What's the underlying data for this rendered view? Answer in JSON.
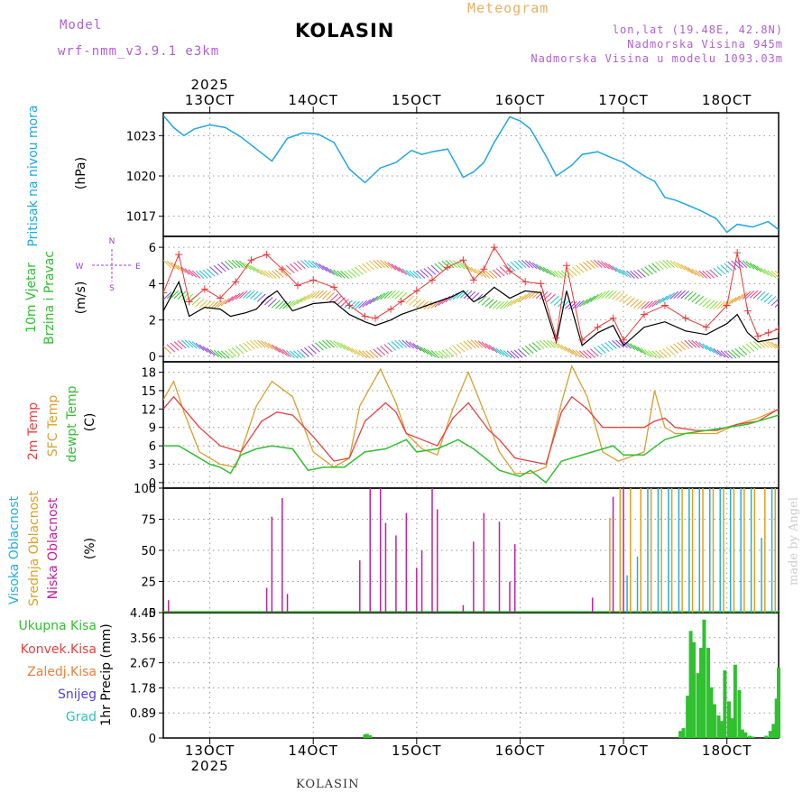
{
  "header": {
    "model_label": "Model",
    "model_version": "wrf-nmm_v3.9.1 e3km",
    "station": "KOLASIN",
    "meteogram": "Meteogram",
    "lonlat": "lon,lat (19.48E, 42.8N)",
    "elevation": "Nadmorska Visina 945m",
    "model_elevation": "Nadmorska Visina u modelu 1093.03m"
  },
  "footer": {
    "station": "KOLASIN",
    "credit": "made by Angel"
  },
  "colors": {
    "pressure": "#20a8e0",
    "wind_speed": "#000000",
    "wind_gust": "#e83838",
    "temp2m": "#e84040",
    "sfc_temp": "#d8a030",
    "dewpt": "#30c030",
    "cloud_high": "#20b0e0",
    "cloud_mid": "#e0a020",
    "cloud_low": "#c020a0",
    "precip": "#30c030"
  },
  "chart_data": [
    {
      "type": "line",
      "panel": "pressure",
      "title": "Pritisak na nivou mora",
      "ylabel": "(hPa)",
      "yticks": [
        1017,
        1020,
        1023
      ],
      "ylim": [
        1015.5,
        1024.7
      ],
      "x_day_range": [
        12.55,
        18.5
      ],
      "x_ticks": [
        "13OCT",
        "14OCT",
        "15OCT",
        "16OCT",
        "17OCT",
        "18OCT"
      ],
      "year": "2025",
      "series": [
        {
          "name": "MSLP",
          "x": [
            12.55,
            12.65,
            12.75,
            12.85,
            13.0,
            13.15,
            13.3,
            13.45,
            13.6,
            13.75,
            13.9,
            14.05,
            14.2,
            14.35,
            14.5,
            14.65,
            14.8,
            14.95,
            15.05,
            15.15,
            15.3,
            15.45,
            15.55,
            15.65,
            15.75,
            15.9,
            16.0,
            16.1,
            16.25,
            16.35,
            16.5,
            16.6,
            16.75,
            16.9,
            17.0,
            17.2,
            17.3,
            17.4,
            17.5,
            17.6,
            17.75,
            17.9,
            18.0,
            18.1,
            18.25,
            18.4,
            18.5
          ],
          "values": [
            1024.5,
            1023.6,
            1023.0,
            1023.5,
            1023.8,
            1023.6,
            1022.9,
            1022.0,
            1021.1,
            1022.8,
            1023.2,
            1023.1,
            1022.5,
            1020.5,
            1019.5,
            1020.6,
            1021.0,
            1021.9,
            1021.6,
            1021.8,
            1022.0,
            1019.9,
            1020.3,
            1021.0,
            1022.5,
            1024.4,
            1024.1,
            1023.5,
            1021.5,
            1020.0,
            1020.8,
            1021.6,
            1021.8,
            1021.3,
            1021.0,
            1020.0,
            1019.6,
            1018.4,
            1018.2,
            1017.9,
            1017.4,
            1016.8,
            1015.8,
            1016.4,
            1016.2,
            1016.6,
            1016.0
          ]
        }
      ]
    },
    {
      "type": "line",
      "panel": "wind",
      "title": "10m Vjetar Brzina i Pravac",
      "ylabel": "(m/s)",
      "yticks": [
        0,
        2,
        4,
        6
      ],
      "ylim": [
        -0.3,
        6.6
      ],
      "compass_labels": [
        "N",
        "S",
        "W",
        "E"
      ],
      "series": [
        {
          "name": "brzina",
          "x": [
            12.55,
            12.7,
            12.8,
            12.95,
            13.1,
            13.2,
            13.35,
            13.45,
            13.55,
            13.65,
            13.8,
            14.0,
            14.2,
            14.35,
            14.5,
            14.6,
            14.75,
            14.85,
            15.0,
            15.15,
            15.25,
            15.35,
            15.45,
            15.55,
            15.65,
            15.75,
            15.9,
            16.05,
            16.2,
            16.35,
            16.45,
            16.6,
            16.75,
            16.9,
            17.0,
            17.2,
            17.4,
            17.6,
            17.8,
            18.0,
            18.1,
            18.2,
            18.3,
            18.5
          ],
          "values": [
            2.5,
            4.1,
            2.2,
            2.7,
            2.6,
            2.2,
            2.4,
            2.6,
            3.2,
            3.6,
            2.5,
            2.9,
            3.0,
            2.3,
            1.9,
            1.7,
            2.0,
            2.3,
            2.6,
            2.9,
            3.1,
            3.3,
            3.6,
            3.0,
            3.3,
            3.8,
            3.2,
            3.6,
            3.5,
            0.8,
            3.6,
            0.6,
            1.3,
            1.7,
            0.6,
            1.6,
            1.9,
            1.4,
            1.2,
            1.8,
            2.3,
            1.3,
            0.8,
            1.0
          ]
        },
        {
          "name": "udari",
          "x": [
            12.55,
            12.7,
            12.8,
            12.95,
            13.1,
            13.25,
            13.4,
            13.55,
            13.7,
            13.85,
            14.0,
            14.2,
            14.35,
            14.5,
            14.6,
            14.75,
            14.85,
            15.0,
            15.15,
            15.3,
            15.45,
            15.55,
            15.65,
            15.75,
            15.9,
            16.05,
            16.2,
            16.35,
            16.45,
            16.6,
            16.75,
            16.9,
            17.0,
            17.2,
            17.4,
            17.6,
            17.8,
            18.0,
            18.1,
            18.2,
            18.3,
            18.4,
            18.5
          ],
          "values": [
            3.5,
            5.6,
            3.0,
            3.7,
            3.2,
            4.1,
            5.3,
            5.6,
            4.8,
            3.9,
            4.2,
            3.8,
            2.8,
            2.2,
            2.1,
            2.6,
            3.0,
            3.6,
            4.2,
            4.9,
            5.3,
            4.2,
            4.8,
            6.0,
            4.7,
            4.1,
            4.0,
            1.0,
            5.0,
            0.9,
            1.6,
            2.1,
            0.9,
            2.3,
            2.8,
            2.1,
            1.6,
            2.8,
            5.7,
            2.5,
            1.1,
            1.3,
            1.5
          ]
        }
      ]
    },
    {
      "type": "line",
      "panel": "temperature",
      "title": "2m Temp / SFC Temp / dewpt Temp",
      "ylabel": "(C)",
      "yticks": [
        0,
        3,
        6,
        9,
        12,
        15,
        18
      ],
      "ylim": [
        -0.9,
        19.7
      ],
      "series": [
        {
          "name": "2m Temp",
          "x": [
            12.55,
            12.65,
            12.75,
            12.9,
            13.1,
            13.3,
            13.5,
            13.65,
            13.8,
            14.0,
            14.2,
            14.35,
            14.5,
            14.7,
            14.8,
            14.9,
            15.05,
            15.2,
            15.35,
            15.5,
            15.7,
            15.8,
            15.95,
            16.1,
            16.25,
            16.4,
            16.5,
            16.65,
            16.8,
            17.0,
            17.2,
            17.3,
            17.4,
            17.5,
            17.7,
            17.9,
            18.1,
            18.3,
            18.5
          ],
          "values": [
            12.0,
            14.0,
            12.0,
            9.0,
            6.0,
            5.0,
            10.0,
            11.5,
            11.0,
            7.5,
            3.5,
            4.0,
            10.0,
            13.0,
            11.5,
            8.0,
            7.0,
            6.0,
            10.5,
            13.0,
            8.5,
            7.0,
            4.0,
            3.5,
            3.0,
            11.5,
            14.0,
            12.0,
            9.0,
            9.0,
            9.0,
            10.0,
            10.5,
            9.0,
            8.5,
            8.5,
            9.5,
            10.0,
            12.0
          ]
        },
        {
          "name": "SFC Temp",
          "x": [
            12.55,
            12.65,
            12.75,
            12.9,
            13.1,
            13.25,
            13.45,
            13.6,
            13.8,
            14.0,
            14.2,
            14.35,
            14.45,
            14.65,
            14.8,
            14.9,
            15.05,
            15.2,
            15.35,
            15.5,
            15.7,
            15.8,
            15.95,
            16.1,
            16.25,
            16.4,
            16.5,
            16.65,
            16.8,
            16.95,
            17.2,
            17.3,
            17.4,
            17.5,
            17.7,
            17.9,
            18.1,
            18.3,
            18.5
          ],
          "values": [
            13.5,
            16.5,
            11.5,
            5.0,
            3.0,
            2.5,
            12.5,
            16.5,
            14.0,
            5.0,
            2.5,
            4.0,
            12.5,
            18.5,
            13.0,
            8.0,
            5.5,
            4.5,
            12.0,
            18.0,
            9.5,
            5.0,
            1.5,
            1.5,
            2.5,
            13.0,
            19.0,
            14.0,
            5.0,
            3.5,
            5.0,
            15.0,
            9.0,
            8.0,
            8.0,
            8.0,
            9.5,
            10.5,
            12.0
          ]
        },
        {
          "name": "dewpt Temp",
          "x": [
            12.55,
            12.7,
            12.85,
            13.0,
            13.1,
            13.2,
            13.3,
            13.45,
            13.6,
            13.8,
            13.95,
            14.1,
            14.3,
            14.5,
            14.7,
            14.9,
            15.0,
            15.2,
            15.4,
            15.55,
            15.7,
            15.8,
            16.0,
            16.1,
            16.25,
            16.4,
            16.5,
            16.7,
            16.9,
            17.0,
            17.2,
            17.4,
            17.6,
            17.8,
            18.0,
            18.2,
            18.5
          ],
          "values": [
            6.0,
            6.0,
            4.5,
            3.0,
            2.5,
            1.5,
            4.5,
            5.5,
            6.0,
            5.5,
            2.0,
            2.5,
            2.5,
            5.0,
            5.5,
            7.0,
            5.0,
            5.5,
            7.0,
            5.5,
            3.5,
            2.0,
            1.0,
            2.0,
            0.0,
            3.5,
            4.0,
            5.0,
            6.0,
            4.5,
            4.5,
            7.0,
            8.0,
            8.5,
            9.0,
            9.5,
            11.0
          ]
        }
      ]
    },
    {
      "type": "bar",
      "panel": "clouds",
      "title": "Visoka / Srednja / Niska Oblacnost",
      "ylabel": "(%)",
      "yticks": [
        0,
        25,
        50,
        75,
        100
      ],
      "ylim": [
        0,
        100
      ],
      "series": [
        {
          "name": "Niska Oblacnost",
          "x": [
            12.6,
            13.55,
            13.6,
            13.7,
            13.75,
            14.45,
            14.55,
            14.65,
            14.7,
            14.8,
            14.9,
            15.0,
            15.05,
            15.15,
            15.2,
            15.45,
            15.55,
            15.65,
            15.8,
            15.9,
            15.95,
            16.7,
            16.9,
            17.0
          ],
          "values": [
            10,
            20,
            77,
            92,
            15,
            42,
            100,
            100,
            72,
            62,
            80,
            36,
            50,
            100,
            83,
            6,
            57,
            80,
            73,
            25,
            55,
            12,
            93,
            100
          ]
        },
        {
          "name": "Srednja Oblacnost",
          "x": [
            16.85,
            16.95,
            17.05,
            17.15,
            17.25,
            17.35,
            17.45,
            17.55,
            17.65,
            17.75,
            17.85,
            17.95,
            18.05,
            18.15,
            18.25,
            18.35,
            18.45
          ],
          "values": [
            76,
            100,
            100,
            100,
            100,
            100,
            100,
            100,
            100,
            100,
            100,
            100,
            100,
            100,
            100,
            100,
            100
          ]
        },
        {
          "name": "Visoka Oblacnost",
          "x": [
            17.0,
            17.1,
            17.2,
            17.3,
            17.4,
            17.5,
            17.6,
            17.7,
            17.8,
            17.9,
            18.0,
            18.1,
            18.2,
            18.3,
            18.4
          ],
          "values": [
            30,
            45,
            100,
            100,
            100,
            100,
            100,
            100,
            100,
            100,
            100,
            100,
            100,
            60,
            100
          ]
        }
      ]
    },
    {
      "type": "bar",
      "panel": "precip",
      "title": "1hr Precip",
      "ylabel": "1hr Precip (mm)",
      "yticks": [
        0,
        0.89,
        1.78,
        2.67,
        3.56,
        4.45
      ],
      "ytick_labels": [
        "0",
        "0.89",
        "1.78",
        "2.67",
        "3.56",
        "4.45"
      ],
      "ylim": [
        0,
        4.45
      ],
      "legend": [
        "Ukupna Kisa",
        "Konvek.Kisa",
        "Zaledj.Kisa",
        "Snijeg",
        "Grad"
      ],
      "series": [
        {
          "name": "Ukupna Kisa",
          "x": [
            14.5,
            14.52,
            14.55,
            17.55,
            17.58,
            17.62,
            17.65,
            17.68,
            17.72,
            17.75,
            17.78,
            17.82,
            17.85,
            17.88,
            17.92,
            17.95,
            17.98,
            18.02,
            18.05,
            18.08,
            18.12,
            18.15,
            18.18,
            18.22,
            18.25,
            18.38,
            18.42,
            18.45,
            18.48,
            18.5
          ],
          "values": [
            0.13,
            0.15,
            0.1,
            0.25,
            0.35,
            1.5,
            3.8,
            3.4,
            2.3,
            3.2,
            4.2,
            3.2,
            1.8,
            1.2,
            0.8,
            0.6,
            2.4,
            1.3,
            0.7,
            2.6,
            1.7,
            0.3,
            0.2,
            0.08,
            0.05,
            0.08,
            0.25,
            0.5,
            1.4,
            2.5
          ]
        }
      ]
    }
  ]
}
